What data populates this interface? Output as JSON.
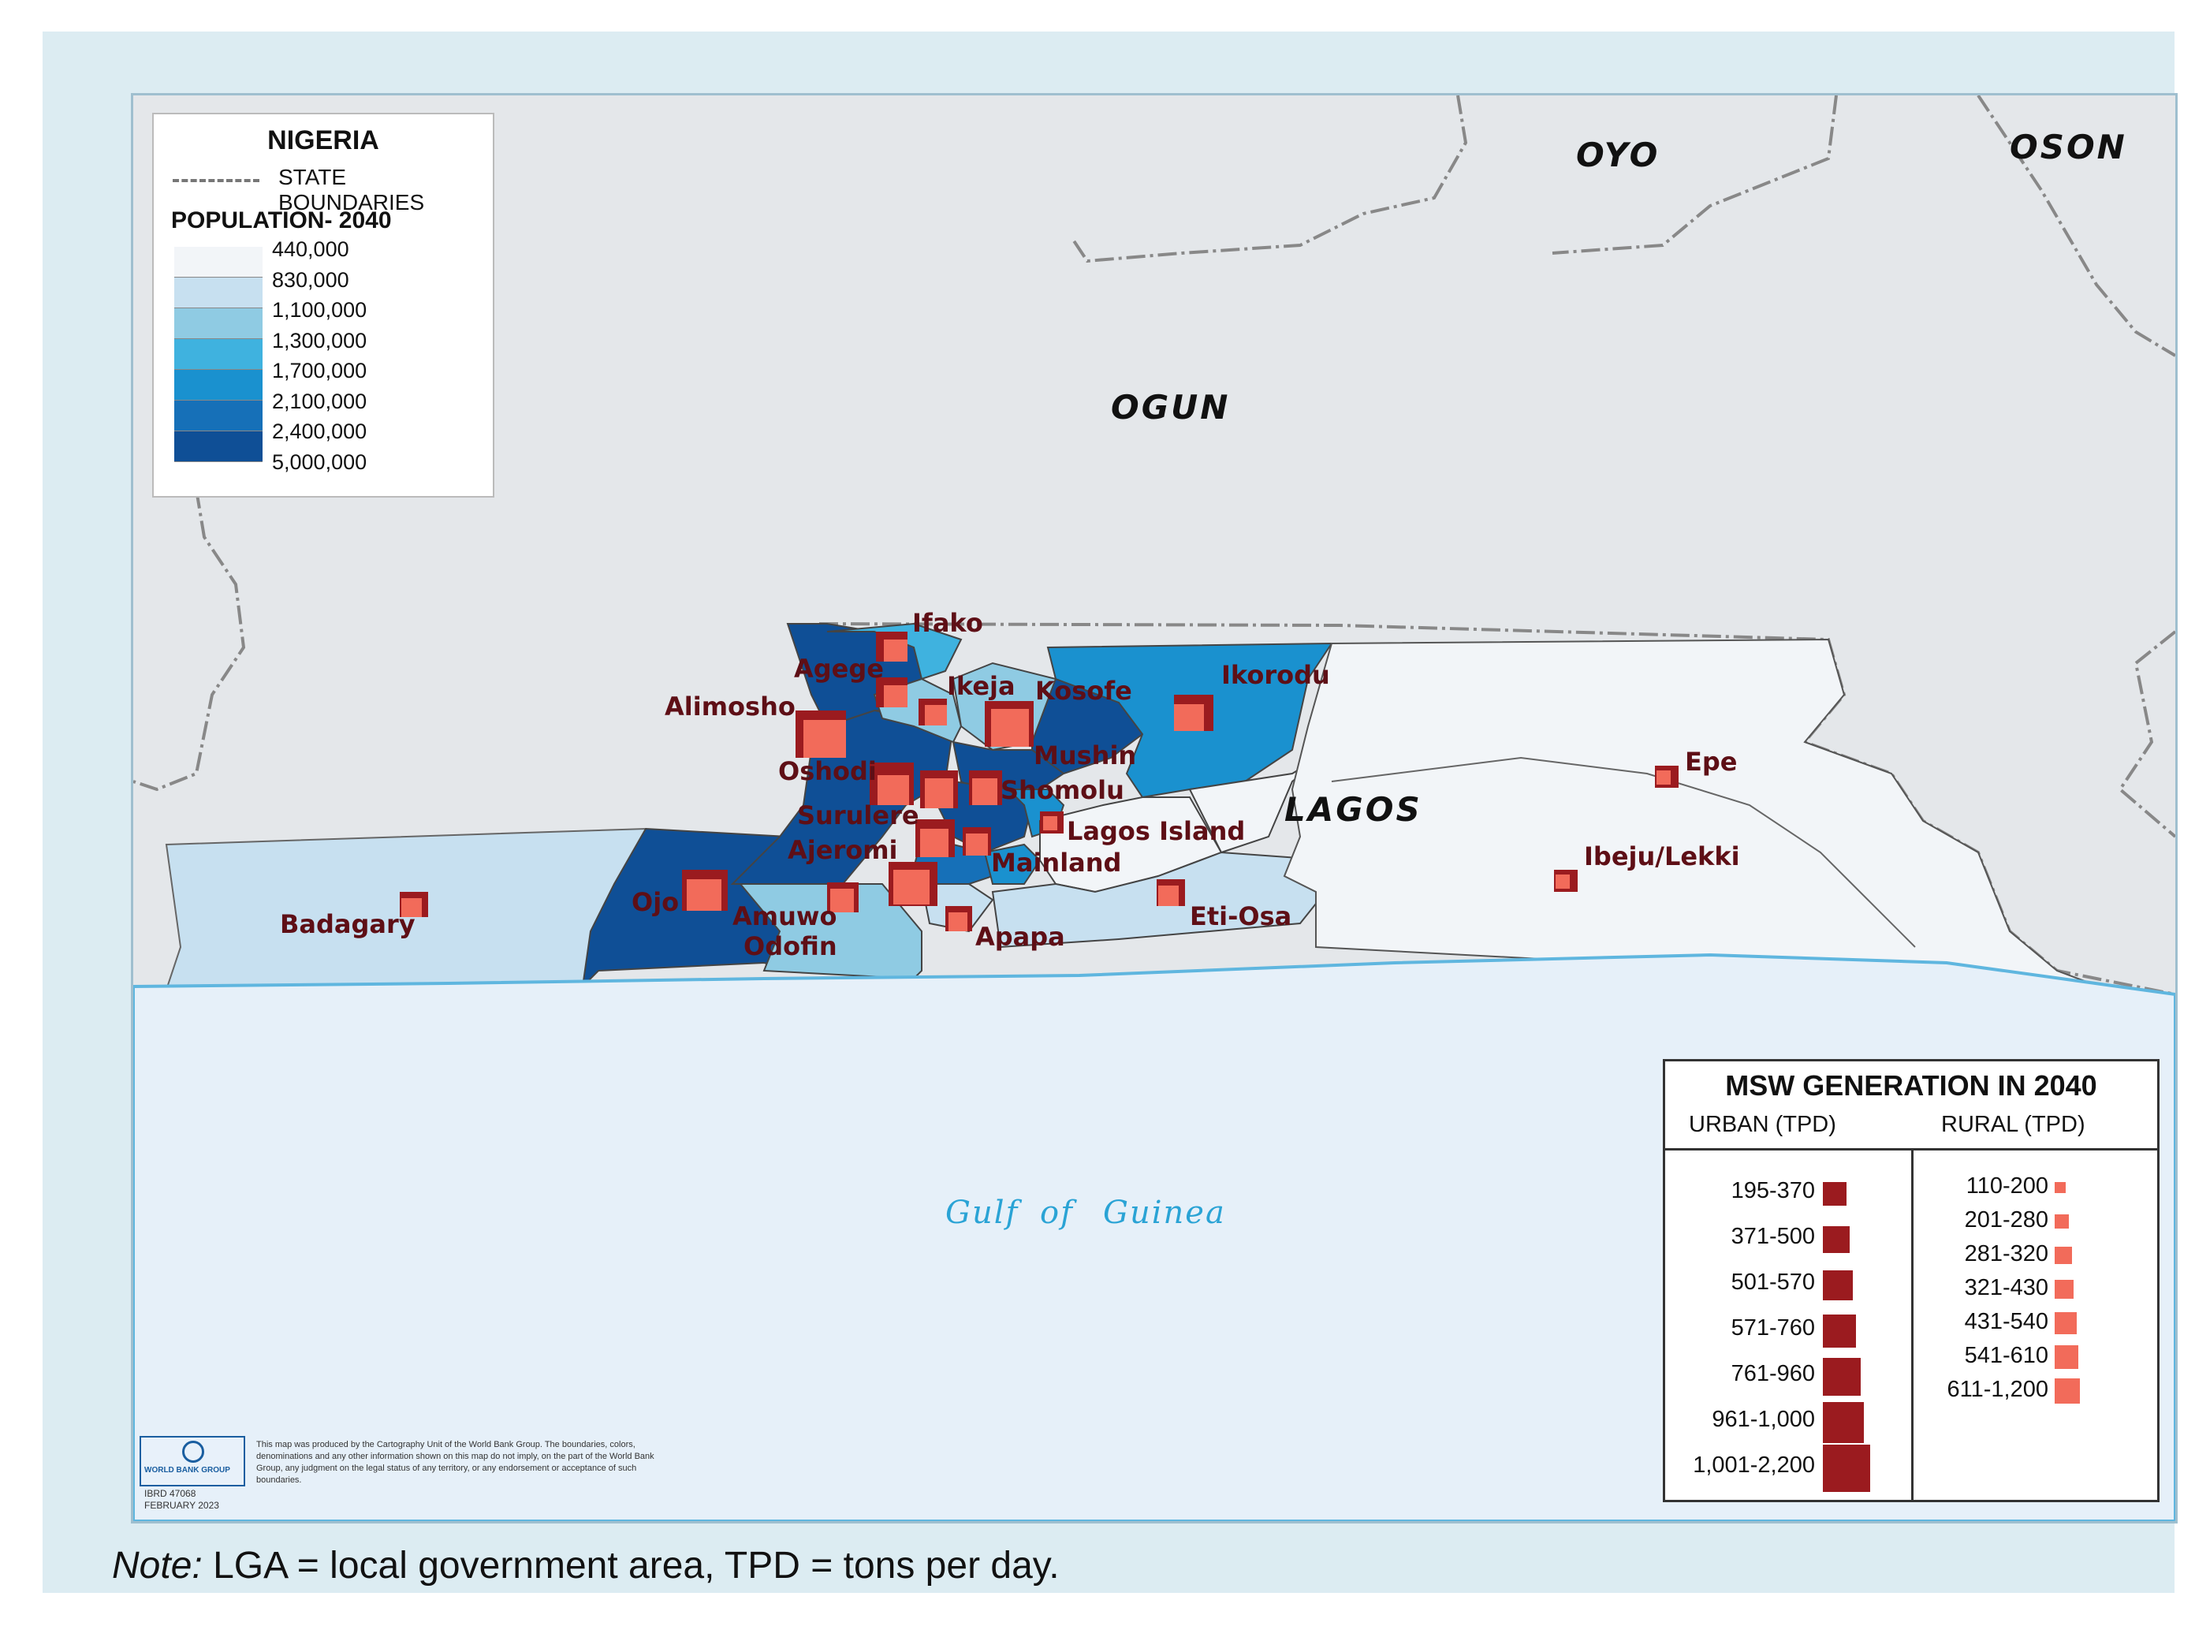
{
  "country": "NIGERIA",
  "state_boundaries_label": "STATE BOUNDARIES",
  "population_legend": {
    "title": "POPULATION- 2040",
    "ticks": [
      "440,000",
      "830,000",
      "1,100,000",
      "1,300,000",
      "1,700,000",
      "2,100,000",
      "2,400,000",
      "5,000,000"
    ],
    "colors": [
      "#f2f5f8",
      "#c7e0f0",
      "#8fcbe3",
      "#3fb2df",
      "#1a91cf",
      "#1670b8",
      "#0f4f96"
    ]
  },
  "states": [
    "OYO",
    "OSON",
    "OGUN",
    "LAGOS"
  ],
  "water_label": [
    "Gulf",
    "of",
    "Guinea"
  ],
  "lgas": [
    {
      "name": "Ifako",
      "urban": "371-500",
      "rural": "201-280"
    },
    {
      "name": "Agege",
      "urban": "371-500",
      "rural": "201-280"
    },
    {
      "name": "Alimosho",
      "urban": "1,001-2,200",
      "rural": "611-1,200"
    },
    {
      "name": "Ikeja",
      "urban": "195-370",
      "rural": "201-280"
    },
    {
      "name": "Kosofe",
      "urban": "761-960",
      "rural": "541-610"
    },
    {
      "name": "Ikorodu",
      "urban": "501-570",
      "rural": "431-540"
    },
    {
      "name": "Mushin",
      "urban": "",
      "rural": ""
    },
    {
      "name": "Oshodi",
      "urban": "571-760",
      "rural": "321-430"
    },
    {
      "name": "Shomolu",
      "urban": "195-370",
      "rural": "321-430"
    },
    {
      "name": "Surulere",
      "urban": "571-760",
      "rural": "321-430"
    },
    {
      "name": "Lagos Island",
      "urban": "195-370",
      "rural": "110-200"
    },
    {
      "name": "Ajeromi",
      "urban": "501-570",
      "rural": "321-430"
    },
    {
      "name": "Mainland",
      "urban": "",
      "rural": ""
    },
    {
      "name": "Ojo",
      "urban": "571-760",
      "rural": "431-540"
    },
    {
      "name": "Amuwo Odofin",
      "urban": "195-370",
      "rural": "281-320"
    },
    {
      "name": "Apapa",
      "urban": "195-370",
      "rural": "201-280"
    },
    {
      "name": "Eti-Osa",
      "urban": "195-370",
      "rural": "201-280"
    },
    {
      "name": "Badagary",
      "urban": "195-370",
      "rural": "201-280"
    },
    {
      "name": "Epe",
      "urban": "195-370",
      "rural": "110-200"
    },
    {
      "name": "Ibeju/Lekki",
      "urban": "195-370",
      "rural": "110-200"
    }
  ],
  "msw_legend": {
    "title": "MSW GENERATION IN 2040",
    "urban_header": "URBAN (TPD)",
    "rural_header": "RURAL (TPD)",
    "urban": [
      "195-370",
      "371-500",
      "501-570",
      "571-760",
      "761-960",
      "961-1,000",
      "1,001-2,200"
    ],
    "rural": [
      "110-200",
      "201-280",
      "281-320",
      "321-430",
      "431-540",
      "541-610",
      "611-1,200"
    ],
    "urban_color": "#9b1b1f",
    "rural_color": "#f26b5a"
  },
  "credit": {
    "logo": "WORLD BANK GROUP",
    "ibrd": "IBRD 47068",
    "date": "FEBRUARY 2023",
    "disclaimer": "This map was produced by the Cartography Unit of the World Bank Group. The boundaries, colors, denominations and any other information shown on this map do not imply, on the part of the World Bank Group, any judgment on the legal status of any territory, or any endorsement or acceptance of such boundaries."
  },
  "note": {
    "prefix": "Note:",
    "text": " LGA = local government area, TPD = tons per day."
  }
}
